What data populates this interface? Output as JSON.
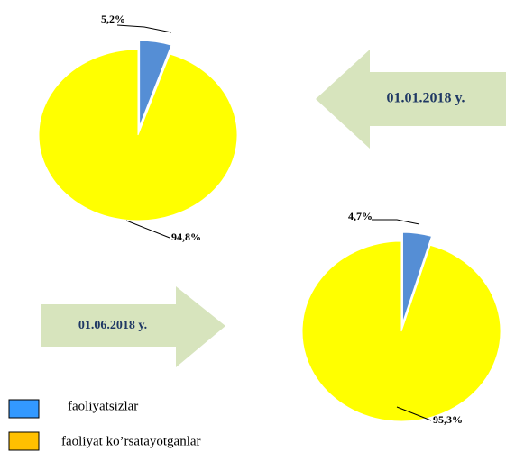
{
  "chart_data": [
    {
      "type": "pie",
      "annotation": "01.01.2018 y.",
      "categories": [
        "faoliyatsizlar",
        "faoliyat ko’rsatayotganlar"
      ],
      "values": [
        5.2,
        94.8
      ],
      "value_labels": [
        "5,2%",
        "94,8%"
      ],
      "colors": [
        "#558ed5",
        "#ffff00"
      ],
      "legend_colors": [
        "#3399ff",
        "#ffc000"
      ]
    },
    {
      "type": "pie",
      "annotation": "01.06.2018 y.",
      "values": [
        4.7,
        95.3
      ],
      "value_labels": [
        "4,7%",
        "95,3%"
      ],
      "colors": [
        "#558ed5",
        "#ffff00"
      ]
    }
  ]
}
